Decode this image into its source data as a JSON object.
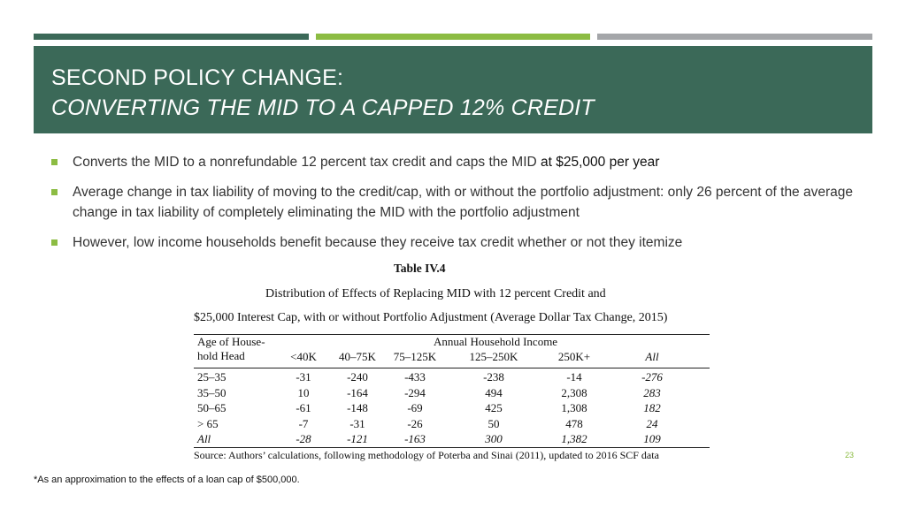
{
  "slide": {
    "title_line1": "SECOND POLICY CHANGE:",
    "title_line2": "CONVERTING THE MID TO A CAPPED 12% CREDIT",
    "page_number": "23",
    "footnote": "*As an approximation to the effects of a loan cap of $500,000."
  },
  "bullets": [
    {
      "text": "Converts the MID to a nonrefundable 12 percent tax credit and caps the MID ",
      "emph": "at $25,000 per year"
    },
    {
      "text": "Average change in tax liability of moving to the credit/cap, with or without the portfolio adjustment: only 26 percent of the average change in tax liability of completely eliminating the MID with the portfolio adjustment",
      "emph": ""
    },
    {
      "text": "However, low income households benefit because they receive tax credit whether or not they itemize",
      "emph": ""
    }
  ],
  "table": {
    "label": "Table IV.4",
    "caption_line1": "Distribution of Effects of Replacing MID with 12 percent Credit and",
    "caption_line2": "$25,000 Interest Cap, with or without Portfolio Adjustment (Average Dollar Tax Change, 2015)",
    "row_header_line1": "Age of House-",
    "row_header_line2": "hold Head",
    "group_header": "Annual Household Income",
    "columns": [
      "<40K",
      "40–75K",
      "75–125K",
      "125–250K",
      "250K+",
      "All"
    ],
    "rows": [
      {
        "label": "25–35",
        "values": [
          "-31",
          "-240",
          "-433",
          "-238",
          "-14",
          "-276"
        ]
      },
      {
        "label": "35–50",
        "values": [
          "10",
          "-164",
          "-294",
          "494",
          "2,308",
          "283"
        ]
      },
      {
        "label": "50–65",
        "values": [
          "-61",
          "-148",
          "-69",
          "425",
          "1,308",
          "182"
        ]
      },
      {
        "label": "> 65",
        "values": [
          "-7",
          "-31",
          "-26",
          "50",
          "478",
          "24"
        ]
      },
      {
        "label": "All",
        "values": [
          "-28",
          "-121",
          "-163",
          "300",
          "1,382",
          "109"
        ]
      }
    ],
    "source": "Source: Authors’ calculations, following methodology of Poterba and Sinai (2011), updated to 2016 SCF data"
  }
}
